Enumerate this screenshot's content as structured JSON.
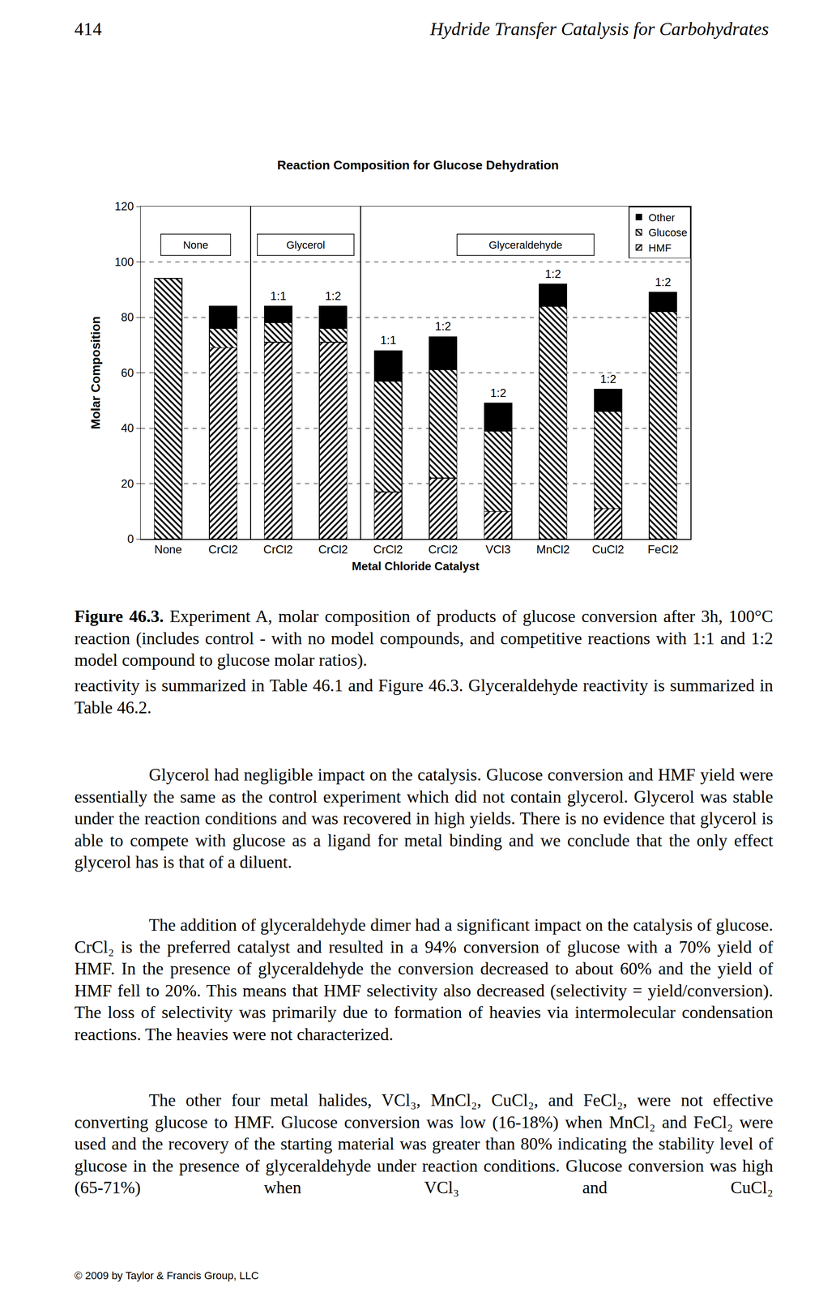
{
  "header": {
    "page": "414",
    "title": "Hydride Transfer Catalysis for Carbohydrates"
  },
  "chart_data": {
    "type": "bar",
    "stacked": true,
    "title": "Reaction Composition for Glucose Dehydration",
    "x_label": "Metal Chloride Catalyst",
    "y_label": "Molar Composition",
    "categories": [
      "None",
      "CrCl2",
      "CrCl2",
      "CrCl2",
      "CrCl2",
      "CrCl2",
      "VCl3",
      "MnCl2",
      "CuCl2",
      "FeCl2"
    ],
    "groups": [
      "None",
      "None",
      "Glycerol",
      "Glycerol",
      "Glyceraldehyde",
      "Glyceraldehyde",
      "Glyceraldehyde",
      "Glyceraldehyde",
      "Glyceraldehyde",
      "Glyceraldehyde"
    ],
    "ratios": [
      null,
      null,
      "1:1",
      "1:2",
      "1:1",
      "1:2",
      "1:2",
      "1:2",
      "1:2",
      "1:2"
    ],
    "series": [
      {
        "name": "HMF",
        "color": "#000000",
        "marker": "hatch_forward",
        "values": [
          0,
          69,
          71,
          71,
          17,
          22,
          10,
          0,
          11,
          0
        ]
      },
      {
        "name": "Glucose",
        "color": "#000000",
        "marker": "hatch_back",
        "values": [
          94,
          7,
          7,
          5,
          40,
          39,
          29,
          84,
          35,
          82
        ]
      },
      {
        "name": "Other",
        "color": "#000000",
        "marker": "solid",
        "values": [
          0,
          8,
          6,
          8,
          11,
          12,
          10,
          8,
          8,
          7
        ]
      }
    ],
    "ylim": [
      0,
      120
    ],
    "yticks": [
      0,
      20,
      40,
      60,
      80,
      100,
      120
    ],
    "grid": true,
    "legend": "top right"
  },
  "caption": {
    "label": "Figure 46.3.",
    "text": "Experiment A, molar composition of products of glucose conversion after 3h, 100°C reaction (includes control - with no model compounds, and competitive reactions with 1:1 and 1:2 model compound to glucose molar ratios)."
  },
  "continuation": "reactivity is summarized in Table 46.1 and Figure 46.3. Glyceraldehyde reactivity is summarized in Table 46.2.",
  "paragraphs": [
    "Glycerol had negligible impact on the catalysis. Glucose conversion and HMF yield were essentially the same as the control experiment which did not contain glycerol. Glycerol was stable under the reaction conditions and was recovered in high yields. There is no evidence that glycerol is able to compete with glucose as a ligand for metal binding and we conclude that the only effect glycerol has is that of a diluent.",
    "The addition of glyceraldehyde dimer had a significant impact on the catalysis of glucose. CrCl₂ is the preferred catalyst and resulted in a 94% conversion of glucose with a 70% yield of HMF. In the presence of glyceraldehyde the conversion decreased to about 60% and the yield of HMF fell to 20%. This means that HMF selectivity also decreased (selectivity = yield/conversion). The loss of selectivity was primarily due to formation of heavies via intermolecular condensation reactions. The heavies were not characterized.",
    "The other four metal halides, VCl₃, MnCl₂, CuCl₂, and FeCl₂, were not effective converting glucose to HMF. Glucose conversion was low (16-18%) when MnCl₂ and FeCl₂ were used and the recovery of the starting material was greater than 80% indicating the stability level of glucose in the presence of glyceraldehyde under reaction conditions. Glucose conversion was high (65-71%) when VCl₃ and CuCl₂"
  ],
  "footer": "© 2009 by Taylor & Francis Group, LLC"
}
